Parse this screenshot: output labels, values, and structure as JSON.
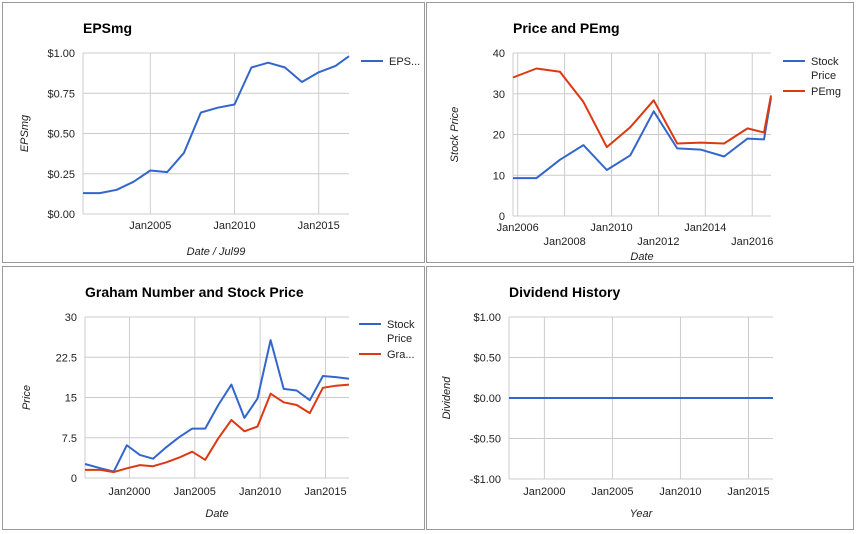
{
  "colors": {
    "blue": "#3366cc",
    "red": "#dc3912",
    "grid": "#cccccc",
    "border": "#999999"
  },
  "chart_data": [
    {
      "type": "line",
      "title": "EPSmg",
      "xlabel": "Date / Jul99",
      "ylabel": "EPSmg",
      "ylim": [
        0,
        1
      ],
      "xlim": [
        2001.0,
        2016.8
      ],
      "y_ticks": [
        "$0.00",
        "$0.25",
        "$0.50",
        "$0.75",
        "$1.00"
      ],
      "y_tick_values": [
        0,
        0.25,
        0.5,
        0.75,
        1.0
      ],
      "x_ticks": [
        "Jan2005",
        "Jan2010",
        "Jan2015"
      ],
      "x_tick_values": [
        2005,
        2010,
        2015
      ],
      "legend": "right",
      "grid": true,
      "series": [
        {
          "name": "EPS...",
          "color": "#3366cc",
          "x": [
            2001.0,
            2002.0,
            2003.0,
            2004.0,
            2005.0,
            2006.0,
            2007.0,
            2008.0,
            2009.0,
            2010.0,
            2011.0,
            2012.0,
            2013.0,
            2014.0,
            2015.0,
            2016.0,
            2016.8
          ],
          "y": [
            0.13,
            0.13,
            0.15,
            0.2,
            0.27,
            0.26,
            0.38,
            0.63,
            0.66,
            0.68,
            0.91,
            0.94,
            0.91,
            0.82,
            0.88,
            0.92,
            0.98
          ]
        }
      ]
    },
    {
      "type": "line",
      "title": "Price and PEmg",
      "xlabel": "Date",
      "ylabel": "Stock Price",
      "ylim": [
        0,
        40
      ],
      "xlim": [
        2005.8,
        2016.8
      ],
      "y_ticks": [
        "0",
        "10",
        "20",
        "30",
        "40"
      ],
      "y_tick_values": [
        0,
        10,
        20,
        30,
        40
      ],
      "x_ticks": [
        "Jan2006",
        "Jan2008",
        "Jan2010",
        "Jan2012",
        "Jan2014",
        "Jan2016"
      ],
      "x_tick_values": [
        2006,
        2008,
        2010,
        2012,
        2014,
        2016
      ],
      "legend": "right",
      "grid": true,
      "series": [
        {
          "name": "Stock Price",
          "color": "#3366cc",
          "x": [
            2005.8,
            2006.8,
            2007.8,
            2008.8,
            2009.8,
            2010.8,
            2011.8,
            2012.8,
            2013.8,
            2014.8,
            2015.8,
            2016.5,
            2016.8
          ],
          "y": [
            9.3,
            9.3,
            13.8,
            17.4,
            11.3,
            14.9,
            25.7,
            16.6,
            16.3,
            14.6,
            19.0,
            18.8,
            29.0
          ]
        },
        {
          "name": "PEmg",
          "color": "#dc3912",
          "x": [
            2005.8,
            2006.8,
            2007.8,
            2008.8,
            2009.8,
            2010.8,
            2011.8,
            2012.8,
            2013.8,
            2014.8,
            2015.8,
            2016.5,
            2016.8
          ],
          "y": [
            34.0,
            36.2,
            35.4,
            28.0,
            16.9,
            21.8,
            28.4,
            17.8,
            18.0,
            17.8,
            21.5,
            20.5,
            29.6
          ]
        }
      ]
    },
    {
      "type": "line",
      "title": "Graham Number and Stock Price",
      "xlabel": "Date",
      "ylabel": "Price",
      "ylim": [
        0,
        30
      ],
      "xlim": [
        1996.6,
        2016.8
      ],
      "y_ticks": [
        "0",
        "7.5",
        "15",
        "22.5",
        "30"
      ],
      "y_tick_values": [
        0,
        7.5,
        15,
        22.5,
        30
      ],
      "x_ticks": [
        "Jan2000",
        "Jan2005",
        "Jan2010",
        "Jan2015"
      ],
      "x_tick_values": [
        2000,
        2005,
        2010,
        2015
      ],
      "legend": "right",
      "grid": true,
      "series": [
        {
          "name": "Stock Price",
          "color": "#3366cc",
          "x": [
            1996.6,
            1997.8,
            1998.8,
            1999.8,
            2000.8,
            2001.8,
            2002.8,
            2003.8,
            2004.8,
            2005.8,
            2006.8,
            2007.8,
            2008.8,
            2009.8,
            2010.8,
            2011.8,
            2012.8,
            2013.8,
            2014.8,
            2015.8,
            2016.8
          ],
          "y": [
            2.6,
            1.8,
            1.2,
            6.1,
            4.3,
            3.6,
            5.7,
            7.6,
            9.2,
            9.2,
            13.6,
            17.4,
            11.2,
            14.8,
            25.7,
            16.6,
            16.3,
            14.5,
            19.0,
            18.8,
            18.5
          ]
        },
        {
          "name": "Gra...",
          "color": "#dc3912",
          "x": [
            1996.6,
            1997.8,
            1998.8,
            1999.8,
            2000.8,
            2001.8,
            2002.8,
            2003.8,
            2004.8,
            2005.8,
            2006.8,
            2007.8,
            2008.8,
            2009.8,
            2010.8,
            2011.8,
            2012.8,
            2013.8,
            2014.8,
            2015.8,
            2016.8
          ],
          "y": [
            1.5,
            1.5,
            1.1,
            1.8,
            2.4,
            2.2,
            2.9,
            3.8,
            4.9,
            3.4,
            7.4,
            10.8,
            8.7,
            9.6,
            15.7,
            14.1,
            13.6,
            12.1,
            16.8,
            17.2,
            17.4
          ]
        }
      ]
    },
    {
      "type": "line",
      "title": "Dividend History",
      "xlabel": "Year",
      "ylabel": "Dividend",
      "ylim": [
        -1,
        1
      ],
      "xlim": [
        1997.4,
        2016.8
      ],
      "y_ticks": [
        "-$1.00",
        "-$0.50",
        "$0.00",
        "$0.50",
        "$1.00"
      ],
      "y_tick_values": [
        -1,
        -0.5,
        0,
        0.5,
        1
      ],
      "x_ticks": [
        "Jan2000",
        "Jan2005",
        "Jan2010",
        "Jan2015"
      ],
      "x_tick_values": [
        2000,
        2005,
        2010,
        2015
      ],
      "legend": "none",
      "grid": true,
      "series": [
        {
          "color": "#3366cc",
          "x": [
            1997.4,
            2016.8
          ],
          "y": [
            0,
            0
          ]
        }
      ]
    }
  ]
}
